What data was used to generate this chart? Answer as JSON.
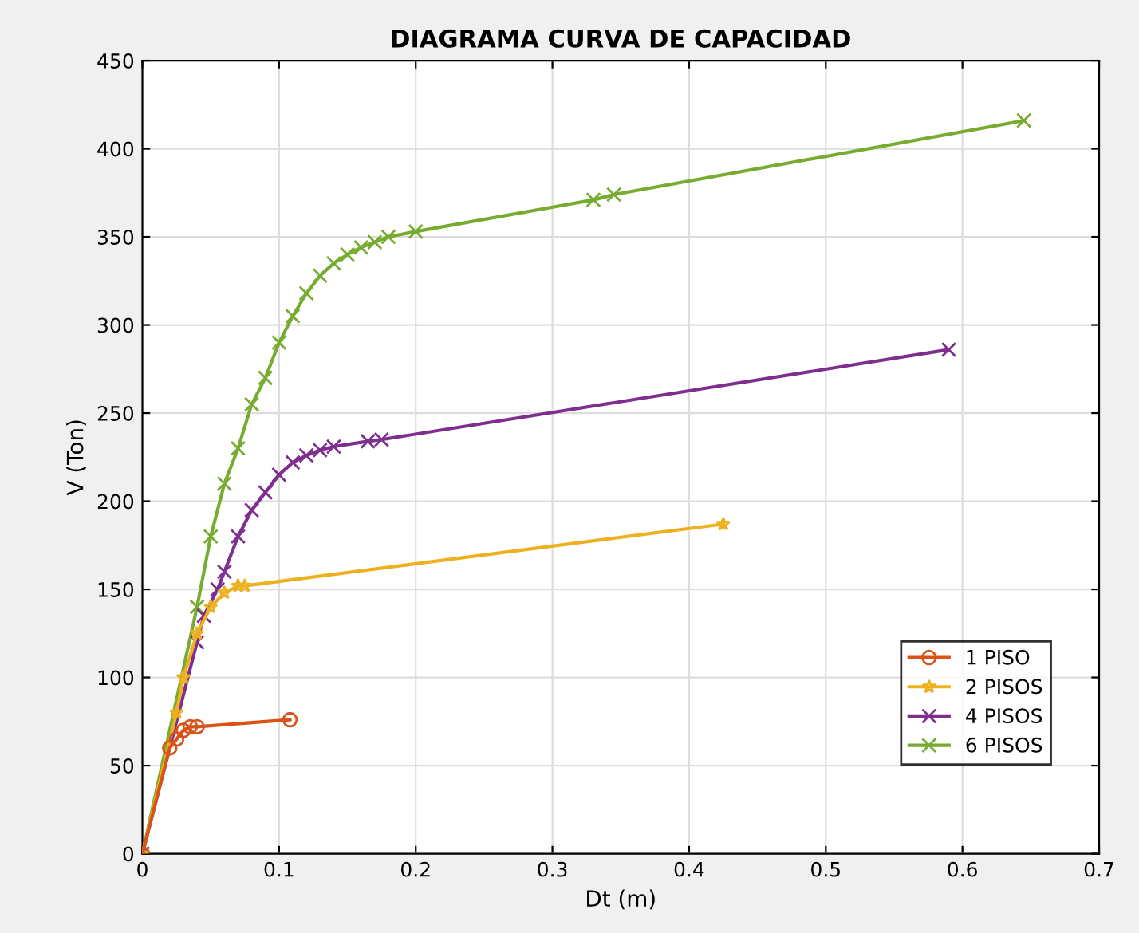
{
  "chart_data": {
    "type": "line",
    "title": "DIAGRAMA CURVA DE CAPACIDAD",
    "xlabel": "Dt (m)",
    "ylabel": "V (Ton)",
    "xlim": [
      0,
      0.7
    ],
    "xticks": [
      0,
      0.1,
      0.2,
      0.3,
      0.4,
      0.5,
      0.6,
      0.7
    ],
    "ylim": [
      0,
      450
    ],
    "yticks": [
      0,
      50,
      100,
      150,
      200,
      250,
      300,
      350,
      400,
      450
    ],
    "grid": true,
    "legend": "bottom right",
    "line_style": "solid",
    "series": [
      {
        "name": "1 PISO",
        "color": "#d95319",
        "marker": "circle",
        "x": [
          0,
          0.02,
          0.025,
          0.03,
          0.035,
          0.04,
          0.108
        ],
        "values": [
          0,
          60,
          65,
          70,
          72,
          72,
          76
        ]
      },
      {
        "name": "2 PISOS",
        "color": "#edb120",
        "marker": "star",
        "x": [
          0,
          0.025,
          0.03,
          0.04,
          0.05,
          0.06,
          0.07,
          0.075,
          0.425
        ],
        "values": [
          0,
          80,
          100,
          125,
          140,
          148,
          152,
          152,
          187
        ]
      },
      {
        "name": "4 PISOS",
        "color": "#7e2f8e",
        "marker": "cross",
        "x": [
          0,
          0.04,
          0.045,
          0.055,
          0.06,
          0.07,
          0.08,
          0.09,
          0.1,
          0.11,
          0.12,
          0.13,
          0.14,
          0.165,
          0.175,
          0.59
        ],
        "values": [
          0,
          120,
          135,
          150,
          160,
          180,
          195,
          205,
          215,
          222,
          226,
          229,
          231,
          234,
          235,
          286
        ]
      },
      {
        "name": "6 PISOS",
        "color": "#77ac30",
        "marker": "cross",
        "x": [
          0,
          0.04,
          0.05,
          0.06,
          0.07,
          0.08,
          0.09,
          0.1,
          0.11,
          0.12,
          0.13,
          0.14,
          0.15,
          0.16,
          0.17,
          0.18,
          0.2,
          0.33,
          0.345,
          0.645
        ],
        "values": [
          0,
          140,
          180,
          210,
          230,
          255,
          270,
          290,
          305,
          318,
          328,
          335,
          340,
          344,
          347,
          350,
          353,
          371,
          374,
          416
        ]
      }
    ]
  }
}
